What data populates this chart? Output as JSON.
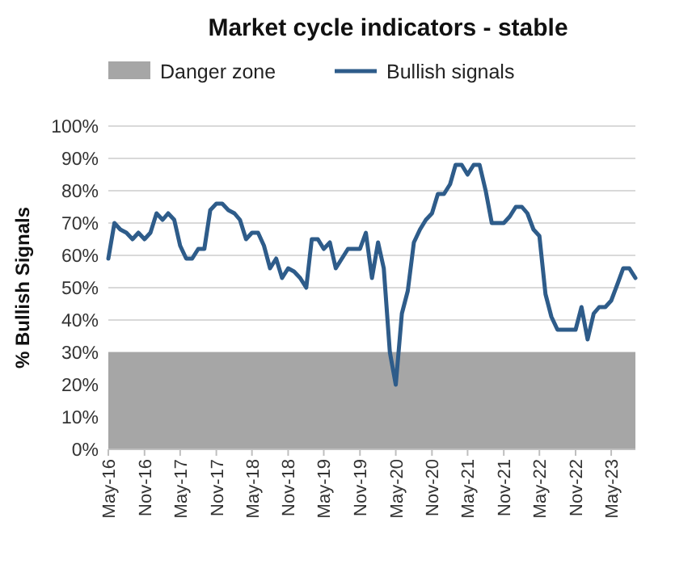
{
  "chart_data": {
    "type": "line",
    "title": "Market cycle indicators - stable",
    "ylabel": "% Bullish Signals",
    "x": [
      "2016-05",
      "2016-06",
      "2016-07",
      "2016-08",
      "2016-09",
      "2016-10",
      "2016-11",
      "2016-12",
      "2017-01",
      "2017-02",
      "2017-03",
      "2017-04",
      "2017-05",
      "2017-06",
      "2017-07",
      "2017-08",
      "2017-09",
      "2017-10",
      "2017-11",
      "2017-12",
      "2018-01",
      "2018-02",
      "2018-03",
      "2018-04",
      "2018-05",
      "2018-06",
      "2018-07",
      "2018-08",
      "2018-09",
      "2018-10",
      "2018-11",
      "2018-12",
      "2019-01",
      "2019-02",
      "2019-03",
      "2019-04",
      "2019-05",
      "2019-06",
      "2019-07",
      "2019-08",
      "2019-09",
      "2019-10",
      "2019-11",
      "2019-12",
      "2020-01",
      "2020-02",
      "2020-03",
      "2020-04",
      "2020-05",
      "2020-06",
      "2020-07",
      "2020-08",
      "2020-09",
      "2020-10",
      "2020-11",
      "2020-12",
      "2021-01",
      "2021-02",
      "2021-03",
      "2021-04",
      "2021-05",
      "2021-06",
      "2021-07",
      "2021-08",
      "2021-09",
      "2021-10",
      "2021-11",
      "2021-12",
      "2022-01",
      "2022-02",
      "2022-03",
      "2022-04",
      "2022-05",
      "2022-06",
      "2022-07",
      "2022-08",
      "2022-09",
      "2022-10",
      "2022-11",
      "2022-12",
      "2023-01",
      "2023-02",
      "2023-03",
      "2023-04",
      "2023-05",
      "2023-06",
      "2023-07",
      "2023-08",
      "2023-09"
    ],
    "series": [
      {
        "name": "Bullish signals",
        "color": "#2e5c8a",
        "values": [
          59,
          70,
          68,
          67,
          65,
          67,
          65,
          67,
          73,
          71,
          73,
          71,
          63,
          59,
          59,
          62,
          62,
          74,
          76,
          76,
          74,
          73,
          71,
          65,
          67,
          67,
          63,
          56,
          59,
          53,
          56,
          55,
          53,
          50,
          65,
          65,
          62,
          64,
          56,
          59,
          62,
          62,
          62,
          67,
          53,
          64,
          56,
          30,
          20,
          42,
          49,
          64,
          68,
          71,
          73,
          79,
          79,
          82,
          88,
          88,
          85,
          88,
          88,
          80,
          70,
          70,
          70,
          72,
          75,
          75,
          73,
          68,
          66,
          48,
          41,
          37,
          37,
          37,
          37,
          44,
          34,
          42,
          44,
          44,
          46,
          51,
          56,
          56,
          53
        ]
      }
    ],
    "xlim": [
      "2016-05",
      "2023-09"
    ],
    "xticks": [
      {
        "value": "2016-05",
        "label": "May-16"
      },
      {
        "value": "2016-11",
        "label": "Nov-16"
      },
      {
        "value": "2017-05",
        "label": "May-17"
      },
      {
        "value": "2017-11",
        "label": "Nov-17"
      },
      {
        "value": "2018-05",
        "label": "May-18"
      },
      {
        "value": "2018-11",
        "label": "Nov-18"
      },
      {
        "value": "2019-05",
        "label": "May-19"
      },
      {
        "value": "2019-11",
        "label": "Nov-19"
      },
      {
        "value": "2020-05",
        "label": "May-20"
      },
      {
        "value": "2020-11",
        "label": "Nov-20"
      },
      {
        "value": "2021-05",
        "label": "May-21"
      },
      {
        "value": "2021-11",
        "label": "Nov-21"
      },
      {
        "value": "2022-05",
        "label": "May-22"
      },
      {
        "value": "2022-11",
        "label": "Nov-22"
      },
      {
        "value": "2023-05",
        "label": "May-23"
      }
    ],
    "ylim": [
      0,
      100
    ],
    "yticks": [
      {
        "value": 0,
        "label": "0%"
      },
      {
        "value": 10,
        "label": "10%"
      },
      {
        "value": 20,
        "label": "20%"
      },
      {
        "value": 30,
        "label": "30%"
      },
      {
        "value": 40,
        "label": "40%"
      },
      {
        "value": 50,
        "label": "50%"
      },
      {
        "value": 60,
        "label": "60%"
      },
      {
        "value": 70,
        "label": "70%"
      },
      {
        "value": 80,
        "label": "80%"
      },
      {
        "value": 90,
        "label": "90%"
      },
      {
        "value": 100,
        "label": "100%"
      }
    ],
    "bands": [
      {
        "axis": "y",
        "from": 0,
        "to": 30,
        "label": "Danger zone",
        "color": "#a6a6a6"
      }
    ],
    "grid": "y",
    "legend": "top",
    "marker": "none",
    "line_style": "solid"
  }
}
